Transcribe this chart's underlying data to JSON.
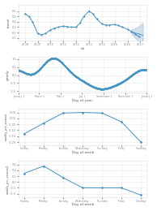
{
  "bg_color": "#ffffff",
  "line_color": "#4393c3",
  "fill_color": "#aec9e0",
  "panel_bg": "#ffffff",
  "grid_color": "#e8e8e8",
  "trend_ylabel": "trend",
  "trend_xlabel": "ds",
  "trend_xticks": [
    2008,
    2009,
    2010,
    2011,
    2012,
    2013,
    2014,
    2015,
    2016,
    2017
  ],
  "trend_xlim": [
    2007.5,
    2017.5
  ],
  "trend_ylim": [
    0.05,
    0.72
  ],
  "trend_yticks": [
    0.1,
    0.2,
    0.3,
    0.4,
    0.5,
    0.6
  ],
  "trend_x": [
    2008,
    2008.3,
    2008.6,
    2009,
    2009.3,
    2009.6,
    2010,
    2010.3,
    2010.6,
    2011,
    2011.3,
    2011.6,
    2012,
    2012.3,
    2012.6,
    2013,
    2013.3,
    2013.6,
    2014,
    2014.3,
    2014.6,
    2015,
    2015.3,
    2015.6,
    2016,
    2016.3,
    2016.6,
    2016.9
  ],
  "trend_y": [
    0.55,
    0.5,
    0.4,
    0.18,
    0.16,
    0.18,
    0.25,
    0.28,
    0.3,
    0.32,
    0.31,
    0.3,
    0.3,
    0.38,
    0.5,
    0.6,
    0.55,
    0.45,
    0.36,
    0.34,
    0.34,
    0.35,
    0.33,
    0.3,
    0.26,
    0.22,
    0.17,
    0.12
  ],
  "trend_ux": [
    2016.3,
    2016.6,
    2016.9,
    2017.2
  ],
  "trend_uy_upper": [
    0.26,
    0.28,
    0.32,
    0.38
  ],
  "trend_uy_lower": [
    0.18,
    0.1,
    0.02,
    -0.08
  ],
  "trend_uy_mid": [
    0.22,
    0.19,
    0.17,
    0.15
  ],
  "yearly_x_labels": [
    "January 1",
    "March 1",
    "May 1",
    "July 1",
    "September 1",
    "November 1",
    "January 1"
  ],
  "yearly_x_vals": [
    0,
    59,
    120,
    181,
    243,
    304,
    365
  ],
  "yearly_ylabel": "yearly",
  "yearly_xlabel": "Day of year",
  "yearly_ylim": [
    -1.1,
    1.15
  ],
  "yearly_yticks": [
    -1.0,
    -0.5,
    0.0,
    0.5,
    1.0
  ],
  "weekly_x_labels": [
    "Sunday",
    "Monday",
    "Tuesday",
    "Wednesday",
    "Thursday",
    "Friday",
    "Saturday"
  ],
  "weekly_y": [
    -0.13,
    -0.04,
    0.045,
    0.05,
    0.045,
    -0.03,
    -0.2
  ],
  "weekly_ylabel": "weekly_pct_season",
  "weekly_xlabel": "Day of week",
  "weekly_ylim": [
    -0.225,
    0.08
  ],
  "weekly_yticks": [
    -0.2,
    -0.15,
    -0.1,
    -0.05,
    0.0,
    0.05
  ],
  "weekly2_y": [
    0.3,
    0.55,
    0.15,
    -0.2,
    -0.2,
    -0.2,
    -0.45
  ],
  "weekly2_ylabel": "weekly_pct_season2",
  "weekly2_xlabel": "Day of week",
  "weekly2_ylim": [
    -0.52,
    0.72
  ],
  "weekly2_yticks": [
    -0.4,
    -0.2,
    0.0,
    0.2,
    0.4,
    0.6
  ]
}
